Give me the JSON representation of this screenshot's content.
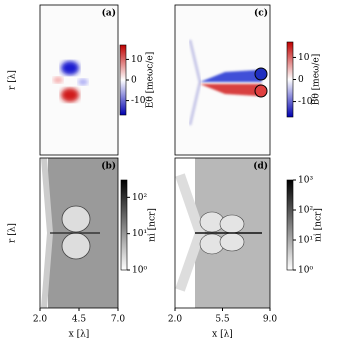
{
  "chart_data": [
    {
      "type": "heatmap",
      "panel_label": "(a)",
      "ylabel": "r [λ]",
      "colorbar": {
        "label": "Eθ [meωc/e]",
        "lim": [
          -17,
          17
        ],
        "ticks": [
          10,
          0,
          -10
        ],
        "cmap": "bwr"
      }
    },
    {
      "type": "heatmap",
      "panel_label": "(c)",
      "colorbar": {
        "label": "Bθ [meω/e]",
        "lim": [
          -17,
          17
        ],
        "ticks": [
          10,
          0,
          -10
        ],
        "cmap": "bwr"
      }
    },
    {
      "type": "heatmap",
      "panel_label": "(b)",
      "ylabel": "r [λ]",
      "xlabel": "x [λ]",
      "xlim": [
        2,
        7
      ],
      "xticks": [
        {
          "value": 2,
          "label": "2.0"
        },
        4.5,
        {
          "value": 7,
          "label": "7.0"
        }
      ],
      "colorbar": {
        "label": "ni [ncr]",
        "log": true,
        "lim": [
          1,
          300
        ],
        "ticks": [
          {
            "value": 1,
            "label": "10⁰"
          },
          {
            "value": 10,
            "label": "10¹"
          },
          {
            "value": 100,
            "label": "10²"
          }
        ],
        "cmap": "gray"
      }
    },
    {
      "type": "heatmap",
      "panel_label": "(d)",
      "xlabel": "x [λ]",
      "xlim": [
        2,
        9
      ],
      "xticks": [
        {
          "value": 2,
          "label": "2.0"
        },
        5.5,
        {
          "value": 9,
          "label": "9.0"
        }
      ],
      "colorbar": {
        "label": "ni [ncr]",
        "log": true,
        "lim": [
          1,
          1000
        ],
        "ticks": [
          {
            "value": 1,
            "label": "10⁰"
          },
          {
            "value": 10,
            "label": "10¹"
          },
          {
            "value": 100,
            "label": "10²"
          },
          {
            "value": 1000,
            "label": "10³"
          }
        ],
        "cmap": "gray"
      }
    }
  ]
}
